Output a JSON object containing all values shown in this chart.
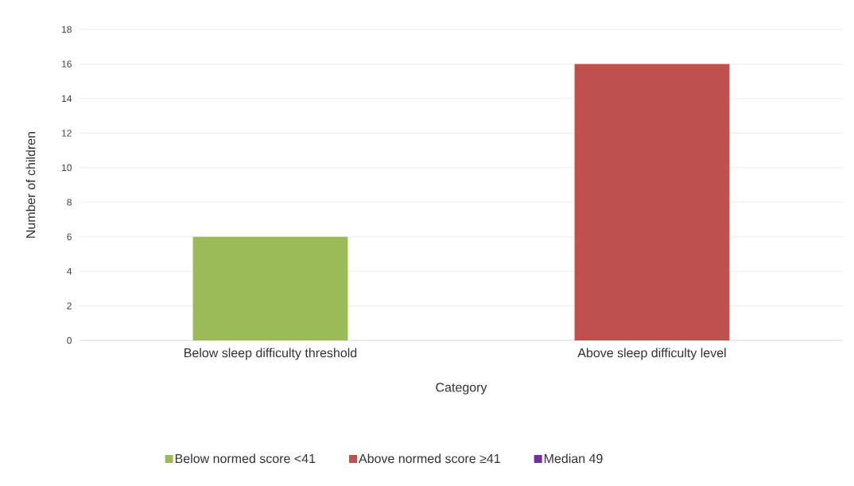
{
  "chart_data": {
    "type": "bar",
    "xlabel": "Category",
    "ylabel": "Number of children",
    "categories": [
      "Below sleep difficulty threshold",
      "Above sleep difficulty level"
    ],
    "series": [
      {
        "name": "Below normed score <41",
        "color": "#9bbb59",
        "values": [
          6,
          null
        ]
      },
      {
        "name": "Above normed score ≥41",
        "color": "#c0504d",
        "values": [
          null,
          16
        ]
      },
      {
        "name": "Median 49",
        "color": "#7030a0",
        "values": [
          null,
          null
        ]
      }
    ],
    "stacked": true,
    "ylim": [
      0,
      18
    ],
    "yticks": [
      0,
      2,
      4,
      6,
      8,
      10,
      12,
      14,
      16,
      18
    ],
    "grid": "y",
    "legend": "bottom"
  }
}
